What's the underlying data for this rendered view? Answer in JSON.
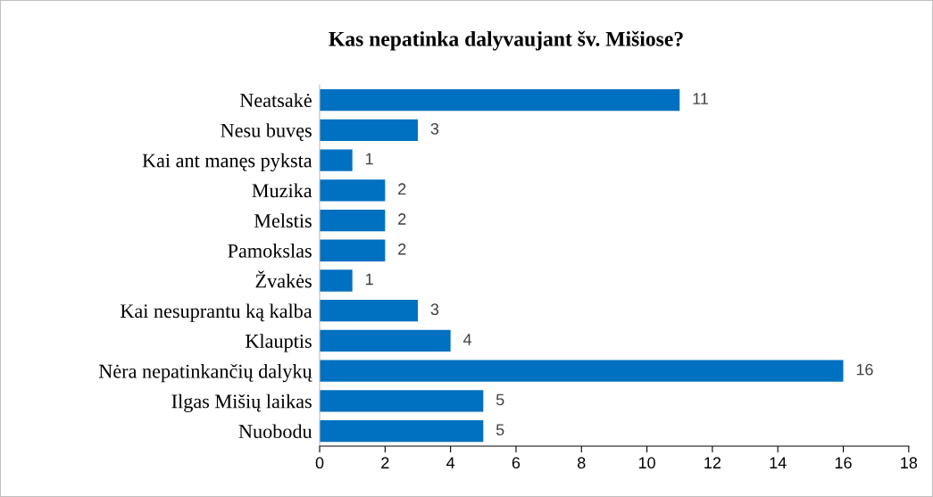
{
  "chart_data": {
    "type": "bar",
    "orientation": "horizontal",
    "title": "Kas nepatinka dalyvaujant šv. Mišiose?",
    "categories": [
      "Neatsakė",
      "Nesu buvęs",
      "Kai ant manęs pyksta",
      "Muzika",
      "Melstis",
      "Pamokslas",
      "Žvakės",
      "Kai nesuprantu ką kalba",
      "Klauptis",
      "Nėra nepatinkančių dalykų",
      "Ilgas Mišių laikas",
      "Nuobodu"
    ],
    "values": [
      11,
      3,
      1,
      2,
      2,
      2,
      1,
      3,
      4,
      16,
      5,
      5
    ],
    "color": "#0070c0",
    "data_labels": true,
    "xlim": [
      0,
      18
    ],
    "xticks": [
      0,
      2,
      4,
      6,
      8,
      10,
      12,
      14,
      16,
      18
    ],
    "grid": false,
    "legend": false
  }
}
